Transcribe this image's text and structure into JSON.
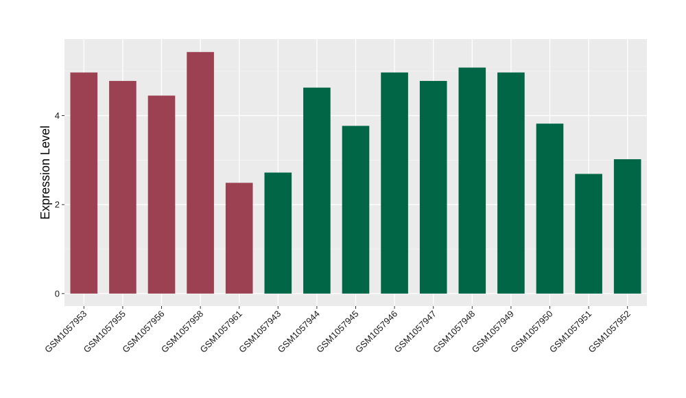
{
  "chart_data": {
    "type": "bar",
    "title": "",
    "xlabel": "",
    "ylabel": "Expression Level",
    "categories": [
      "GSM1057953",
      "GSM1057955",
      "GSM1057956",
      "GSM1057958",
      "GSM1057961",
      "GSM1057943",
      "GSM1057944",
      "GSM1057945",
      "GSM1057946",
      "GSM1057947",
      "GSM1057948",
      "GSM1057949",
      "GSM1057950",
      "GSM1057951",
      "GSM1057952"
    ],
    "values": [
      4.97,
      4.78,
      4.45,
      5.43,
      2.49,
      2.72,
      4.63,
      3.77,
      4.97,
      4.78,
      5.08,
      4.97,
      3.82,
      2.69,
      3.02
    ],
    "groups": [
      0,
      0,
      0,
      0,
      0,
      1,
      1,
      1,
      1,
      1,
      1,
      1,
      1,
      1,
      1
    ],
    "group_colors": [
      "#9b4151",
      "#006645"
    ],
    "yticks": [
      0,
      2,
      4
    ],
    "ylim": [
      -0.28,
      5.72
    ],
    "grid": true,
    "background": "#ebebeb"
  }
}
